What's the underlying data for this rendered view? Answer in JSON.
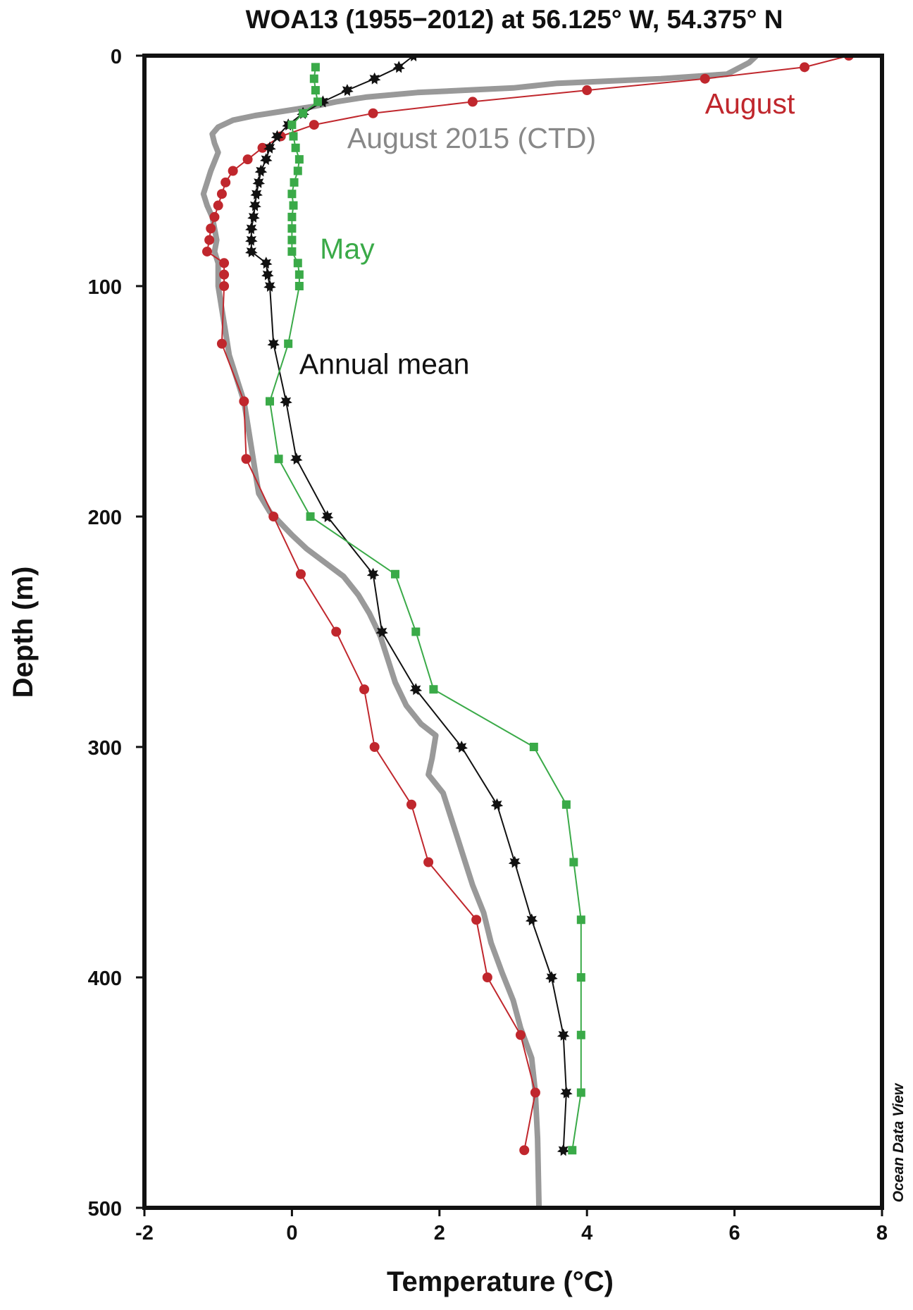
{
  "chart_data": {
    "type": "line",
    "title": "WOA13 (1955−2012) at 56.125° W, 54.375° N",
    "xlabel": "Temperature (°C)",
    "ylabel": "Depth (m)",
    "xlim": [
      -2,
      8
    ],
    "ylim": [
      500,
      0
    ],
    "y_inverted": true,
    "x_ticks": [
      -2,
      0,
      2,
      4,
      6,
      8
    ],
    "x_tick_labels": [
      "-2",
      "0",
      "2",
      "4",
      "6",
      "8"
    ],
    "y_ticks": [
      0,
      100,
      200,
      300,
      400,
      500
    ],
    "y_tick_labels": [
      "0",
      "100",
      "200",
      "300",
      "400",
      "500"
    ],
    "grid": false,
    "credit": "Ocean Data View",
    "series": [
      {
        "name": "August 2015 (CTD)",
        "color": "#999999",
        "marker": "none",
        "points": [
          [
            6.3,
            0
          ],
          [
            6.2,
            3
          ],
          [
            5.9,
            8
          ],
          [
            5.0,
            10
          ],
          [
            3.6,
            12
          ],
          [
            3.0,
            14
          ],
          [
            1.7,
            16
          ],
          [
            1.0,
            18
          ],
          [
            0.6,
            20
          ],
          [
            0.3,
            22
          ],
          [
            -0.1,
            24
          ],
          [
            -0.5,
            26
          ],
          [
            -0.8,
            28
          ],
          [
            -1.0,
            31
          ],
          [
            -1.08,
            34
          ],
          [
            -1.05,
            38
          ],
          [
            -1.0,
            42
          ],
          [
            -1.05,
            46
          ],
          [
            -1.1,
            50
          ],
          [
            -1.15,
            55
          ],
          [
            -1.2,
            60
          ],
          [
            -1.15,
            65
          ],
          [
            -1.08,
            70
          ],
          [
            -1.05,
            75
          ],
          [
            -1.02,
            80
          ],
          [
            -1.05,
            85
          ],
          [
            -1.0,
            90
          ],
          [
            -1.0,
            95
          ],
          [
            -1.0,
            100
          ],
          [
            -0.95,
            110
          ],
          [
            -0.9,
            120
          ],
          [
            -0.85,
            130
          ],
          [
            -0.75,
            140
          ],
          [
            -0.65,
            150
          ],
          [
            -0.6,
            160
          ],
          [
            -0.55,
            170
          ],
          [
            -0.5,
            180
          ],
          [
            -0.45,
            190
          ],
          [
            -0.3,
            198
          ],
          [
            -0.15,
            203
          ],
          [
            0.0,
            208
          ],
          [
            0.2,
            214
          ],
          [
            0.45,
            220
          ],
          [
            0.7,
            226
          ],
          [
            0.9,
            234
          ],
          [
            1.05,
            242
          ],
          [
            1.2,
            252
          ],
          [
            1.3,
            262
          ],
          [
            1.4,
            272
          ],
          [
            1.55,
            282
          ],
          [
            1.75,
            290
          ],
          [
            1.95,
            295
          ],
          [
            1.9,
            305
          ],
          [
            1.85,
            312
          ],
          [
            2.05,
            320
          ],
          [
            2.15,
            330
          ],
          [
            2.25,
            340
          ],
          [
            2.35,
            350
          ],
          [
            2.45,
            360
          ],
          [
            2.6,
            372
          ],
          [
            2.7,
            385
          ],
          [
            2.85,
            398
          ],
          [
            3.0,
            410
          ],
          [
            3.1,
            422
          ],
          [
            3.25,
            435
          ],
          [
            3.3,
            450
          ],
          [
            3.33,
            470
          ],
          [
            3.35,
            500
          ]
        ]
      },
      {
        "name": "August",
        "color": "#c0272d",
        "marker": "circle",
        "points": [
          [
            7.55,
            0
          ],
          [
            6.95,
            5
          ],
          [
            5.6,
            10
          ],
          [
            4.0,
            15
          ],
          [
            2.45,
            20
          ],
          [
            1.1,
            25
          ],
          [
            0.3,
            30
          ],
          [
            -0.15,
            35
          ],
          [
            -0.4,
            40
          ],
          [
            -0.6,
            45
          ],
          [
            -0.8,
            50
          ],
          [
            -0.9,
            55
          ],
          [
            -0.95,
            60
          ],
          [
            -1.0,
            65
          ],
          [
            -1.05,
            70
          ],
          [
            -1.1,
            75
          ],
          [
            -1.12,
            80
          ],
          [
            -1.15,
            85
          ],
          [
            -0.92,
            90
          ],
          [
            -0.92,
            95
          ],
          [
            -0.92,
            100
          ],
          [
            -0.95,
            125
          ],
          [
            -0.65,
            150
          ],
          [
            -0.62,
            175
          ],
          [
            -0.25,
            200
          ],
          [
            0.12,
            225
          ],
          [
            0.6,
            250
          ],
          [
            0.98,
            275
          ],
          [
            1.12,
            300
          ],
          [
            1.62,
            325
          ],
          [
            1.85,
            350
          ],
          [
            2.5,
            375
          ],
          [
            2.65,
            400
          ],
          [
            3.1,
            425
          ],
          [
            3.3,
            450
          ],
          [
            3.15,
            475
          ]
        ]
      },
      {
        "name": "Annual mean",
        "color": "#111111",
        "marker": "star",
        "points": [
          [
            1.65,
            0
          ],
          [
            1.45,
            5
          ],
          [
            1.12,
            10
          ],
          [
            0.75,
            15
          ],
          [
            0.42,
            20
          ],
          [
            0.15,
            25
          ],
          [
            -0.05,
            30
          ],
          [
            -0.2,
            35
          ],
          [
            -0.3,
            40
          ],
          [
            -0.35,
            45
          ],
          [
            -0.42,
            50
          ],
          [
            -0.45,
            55
          ],
          [
            -0.48,
            60
          ],
          [
            -0.5,
            65
          ],
          [
            -0.52,
            70
          ],
          [
            -0.55,
            75
          ],
          [
            -0.55,
            80
          ],
          [
            -0.55,
            85
          ],
          [
            -0.35,
            90
          ],
          [
            -0.33,
            95
          ],
          [
            -0.3,
            100
          ],
          [
            -0.25,
            125
          ],
          [
            -0.08,
            150
          ],
          [
            0.06,
            175
          ],
          [
            0.48,
            200
          ],
          [
            1.1,
            225
          ],
          [
            1.22,
            250
          ],
          [
            1.68,
            275
          ],
          [
            2.3,
            300
          ],
          [
            2.78,
            325
          ],
          [
            3.02,
            350
          ],
          [
            3.25,
            375
          ],
          [
            3.52,
            400
          ],
          [
            3.68,
            425
          ],
          [
            3.72,
            450
          ],
          [
            3.68,
            475
          ]
        ]
      },
      {
        "name": "May",
        "color": "#3aaa48",
        "marker": "square",
        "points": [
          [
            0.32,
            5
          ],
          [
            0.3,
            10
          ],
          [
            0.32,
            15
          ],
          [
            0.35,
            20
          ],
          [
            0.15,
            25
          ],
          [
            0.0,
            30
          ],
          [
            0.02,
            35
          ],
          [
            0.05,
            40
          ],
          [
            0.1,
            45
          ],
          [
            0.08,
            50
          ],
          [
            0.03,
            55
          ],
          [
            0.0,
            60
          ],
          [
            0.02,
            65
          ],
          [
            0.0,
            70
          ],
          [
            0.0,
            75
          ],
          [
            0.0,
            80
          ],
          [
            0.0,
            85
          ],
          [
            0.08,
            90
          ],
          [
            0.1,
            95
          ],
          [
            0.1,
            100
          ],
          [
            -0.05,
            125
          ],
          [
            -0.3,
            150
          ],
          [
            -0.18,
            175
          ],
          [
            0.25,
            200
          ],
          [
            1.4,
            225
          ],
          [
            1.68,
            250
          ],
          [
            1.92,
            275
          ],
          [
            3.28,
            300
          ],
          [
            3.72,
            325
          ],
          [
            3.82,
            350
          ],
          [
            3.92,
            375
          ],
          [
            3.92,
            400
          ],
          [
            3.92,
            425
          ],
          [
            3.92,
            450
          ],
          [
            3.8,
            475
          ]
        ]
      }
    ],
    "annotations": [
      {
        "text": "August",
        "color": "#c0272d",
        "x": 5.6,
        "y": 25
      },
      {
        "text": "August 2015 (CTD)",
        "color": "#888888",
        "x": 0.75,
        "y": 40
      },
      {
        "text": "May",
        "color": "#3aaa48",
        "x": 0.38,
        "y": 88
      },
      {
        "text": "Annual mean",
        "color": "#111111",
        "x": 0.1,
        "y": 138
      }
    ]
  }
}
